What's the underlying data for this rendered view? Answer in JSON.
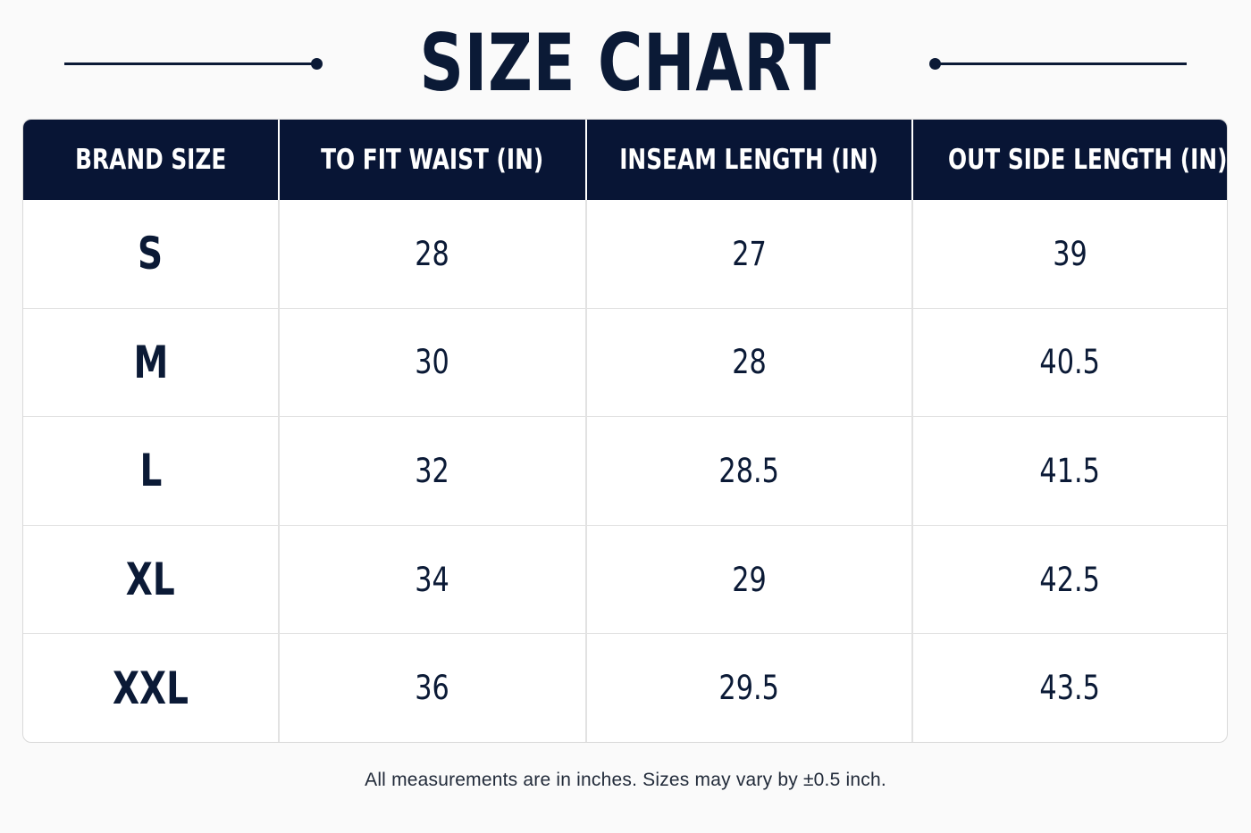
{
  "title": "SIZE CHART",
  "table": {
    "headers": [
      "BRAND SIZE",
      "TO FIT WAIST (IN)",
      "INSEAM LENGTH (IN)",
      "OUT SIDE LENGTH (IN)"
    ],
    "rows": [
      [
        "S",
        "28",
        "27",
        "39"
      ],
      [
        "M",
        "30",
        "28",
        "40.5"
      ],
      [
        "L",
        "32",
        "28.5",
        "41.5"
      ],
      [
        "XL",
        "34",
        "29",
        "42.5"
      ],
      [
        "XXL",
        "36",
        "29.5",
        "43.5"
      ]
    ]
  },
  "footnote": "All measurements are in inches. Sizes may vary by ±0.5 inch.",
  "colors": {
    "navy": "#081535",
    "background": "#fafafa",
    "grid": "#e2e2e2"
  }
}
